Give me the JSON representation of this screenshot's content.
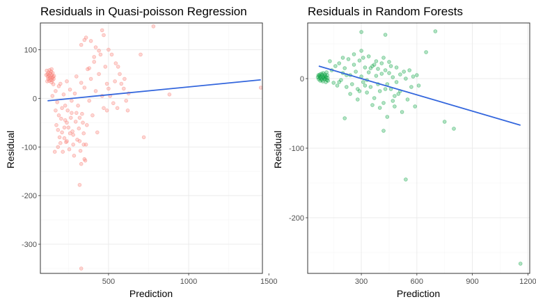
{
  "colors": {
    "background": "#ffffff",
    "grid_major": "#ebebeb",
    "grid_minor": "#f5f5f5",
    "border": "#333333",
    "trend": "#3366dd"
  },
  "chart_data": [
    {
      "type": "scatter",
      "title": "Residuals in Quasi-poisson Regression",
      "xlabel": "Prediction",
      "ylabel": "Residual",
      "xlim": [
        75,
        1460
      ],
      "ylim": [
        -360,
        155
      ],
      "xticks": [
        500,
        1000,
        1500
      ],
      "xtick_labels": [
        "500",
        "1000",
        "1500"
      ],
      "yticks": [
        100,
        0,
        -100,
        -200,
        -300
      ],
      "ytick_labels": [
        "100",
        "0",
        "-100",
        "-200",
        "-300"
      ],
      "grid": true,
      "point_color": "#f8766d",
      "trend_line": {
        "x": [
          120,
          1450
        ],
        "y": [
          -5,
          38
        ]
      },
      "points": [
        [
          115,
          57
        ],
        [
          120,
          50
        ],
        [
          122,
          44
        ],
        [
          124,
          40
        ],
        [
          126,
          53
        ],
        [
          128,
          47
        ],
        [
          130,
          36
        ],
        [
          132,
          58
        ],
        [
          134,
          42
        ],
        [
          136,
          51
        ],
        [
          138,
          45
        ],
        [
          140,
          38
        ],
        [
          142,
          55
        ],
        [
          144,
          33
        ],
        [
          146,
          48
        ],
        [
          148,
          42
        ],
        [
          150,
          37
        ],
        [
          152,
          52
        ],
        [
          154,
          44
        ],
        [
          156,
          29
        ],
        [
          158,
          40
        ],
        [
          118,
          35
        ],
        [
          112,
          48
        ],
        [
          160,
          46
        ],
        [
          145,
          60
        ],
        [
          150,
          5
        ],
        [
          170,
          15
        ],
        [
          180,
          -8
        ],
        [
          190,
          25
        ],
        [
          200,
          30
        ],
        [
          210,
          -20
        ],
        [
          220,
          8
        ],
        [
          230,
          -45
        ],
        [
          240,
          35
        ],
        [
          250,
          -60
        ],
        [
          260,
          18
        ],
        [
          270,
          -30
        ],
        [
          280,
          -75
        ],
        [
          290,
          10
        ],
        [
          300,
          45
        ],
        [
          310,
          -15
        ],
        [
          320,
          -88
        ],
        [
          330,
          32
        ],
        [
          340,
          -50
        ],
        [
          350,
          22
        ],
        [
          360,
          -95
        ],
        [
          370,
          60
        ],
        [
          380,
          -5
        ],
        [
          390,
          40
        ],
        [
          400,
          -35
        ],
        [
          410,
          75
        ],
        [
          420,
          15
        ],
        [
          430,
          -70
        ],
        [
          440,
          50
        ],
        [
          450,
          90
        ],
        [
          460,
          5
        ],
        [
          470,
          -20
        ],
        [
          480,
          65
        ],
        [
          490,
          30
        ],
        [
          500,
          20
        ],
        [
          175,
          -55
        ],
        [
          185,
          -100
        ],
        [
          195,
          -80
        ],
        [
          205,
          -42
        ],
        [
          215,
          -110
        ],
        [
          225,
          -60
        ],
        [
          235,
          -90
        ],
        [
          245,
          -25
        ],
        [
          255,
          -105
        ],
        [
          265,
          -40
        ],
        [
          275,
          -68
        ],
        [
          285,
          -118
        ],
        [
          295,
          -48
        ],
        [
          305,
          -85
        ],
        [
          315,
          -62
        ],
        [
          325,
          -108
        ],
        [
          335,
          -32
        ],
        [
          345,
          -72
        ],
        [
          355,
          -128
        ],
        [
          365,
          -55
        ],
        [
          185,
          -65
        ],
        [
          200,
          -92
        ],
        [
          165,
          -110
        ],
        [
          225,
          -82
        ],
        [
          240,
          -50
        ],
        [
          260,
          -72
        ],
        [
          280,
          -95
        ],
        [
          300,
          -30
        ],
        [
          320,
          -40
        ],
        [
          345,
          -95
        ],
        [
          330,
          -135
        ],
        [
          350,
          -125
        ],
        [
          320,
          -178
        ],
        [
          330,
          -350
        ],
        [
          240,
          -88
        ],
        [
          210,
          -70
        ],
        [
          170,
          -25
        ],
        [
          190,
          -35
        ],
        [
          230,
          -15
        ],
        [
          270,
          -5
        ],
        [
          330,
          110
        ],
        [
          350,
          120
        ],
        [
          360,
          125
        ],
        [
          390,
          118
        ],
        [
          420,
          105
        ],
        [
          440,
          98
        ],
        [
          460,
          140
        ],
        [
          470,
          130
        ],
        [
          410,
          85
        ],
        [
          380,
          62
        ],
        [
          500,
          100
        ],
        [
          520,
          90
        ],
        [
          545,
          72
        ],
        [
          560,
          65
        ],
        [
          570,
          50
        ],
        [
          580,
          30
        ],
        [
          595,
          20
        ],
        [
          610,
          -5
        ],
        [
          620,
          -25
        ],
        [
          625,
          10
        ],
        [
          600,
          40
        ],
        [
          540,
          35
        ],
        [
          530,
          -10
        ],
        [
          555,
          -20
        ],
        [
          510,
          5
        ],
        [
          490,
          -25
        ],
        [
          700,
          90
        ],
        [
          720,
          -80
        ],
        [
          780,
          148
        ],
        [
          880,
          8
        ],
        [
          1450,
          22
        ]
      ]
    },
    {
      "type": "scatter",
      "title": "Residuals in Random Forests",
      "xlabel": "Prediction",
      "ylabel": "Residual",
      "xlim": [
        10,
        1210
      ],
      "ylim": [
        -280,
        80
      ],
      "xticks": [
        300,
        600,
        900,
        1200
      ],
      "xtick_labels": [
        "300",
        "600",
        "900",
        "1200"
      ],
      "yticks": [
        0,
        -100,
        -200
      ],
      "ytick_labels": [
        "0",
        "-100",
        "-200"
      ],
      "grid": true,
      "point_color": "#00a03a",
      "trend_line": {
        "x": [
          70,
          1160
        ],
        "y": [
          18,
          -67
        ]
      },
      "points": [
        [
          65,
          2
        ],
        [
          68,
          5
        ],
        [
          70,
          -1
        ],
        [
          72,
          4
        ],
        [
          74,
          1
        ],
        [
          76,
          6
        ],
        [
          78,
          -3
        ],
        [
          80,
          3
        ],
        [
          82,
          0
        ],
        [
          84,
          7
        ],
        [
          86,
          -2
        ],
        [
          88,
          5
        ],
        [
          90,
          2
        ],
        [
          92,
          -4
        ],
        [
          94,
          8
        ],
        [
          96,
          1
        ],
        [
          98,
          3
        ],
        [
          100,
          -1
        ],
        [
          102,
          6
        ],
        [
          104,
          0
        ],
        [
          106,
          4
        ],
        [
          108,
          -5
        ],
        [
          110,
          2
        ],
        [
          112,
          9
        ],
        [
          114,
          -2
        ],
        [
          116,
          5
        ],
        [
          118,
          1
        ],
        [
          120,
          -3
        ],
        [
          130,
          25
        ],
        [
          140,
          12
        ],
        [
          150,
          -6
        ],
        [
          160,
          18
        ],
        [
          170,
          -10
        ],
        [
          180,
          22
        ],
        [
          190,
          -2
        ],
        [
          200,
          8
        ],
        [
          210,
          15
        ],
        [
          220,
          -12
        ],
        [
          230,
          28
        ],
        [
          240,
          5
        ],
        [
          250,
          -8
        ],
        [
          260,
          20
        ],
        [
          270,
          10
        ],
        [
          280,
          -15
        ],
        [
          290,
          26
        ],
        [
          300,
          3
        ],
        [
          310,
          -5
        ],
        [
          320,
          16
        ],
        [
          330,
          -20
        ],
        [
          340,
          9
        ],
        [
          350,
          -12
        ],
        [
          360,
          18
        ],
        [
          370,
          -28
        ],
        [
          380,
          4
        ],
        [
          390,
          14
        ],
        [
          400,
          -18
        ],
        [
          410,
          7
        ],
        [
          420,
          -35
        ],
        [
          430,
          12
        ],
        [
          440,
          -8
        ],
        [
          450,
          24
        ],
        [
          460,
          -15
        ],
        [
          470,
          2
        ],
        [
          480,
          -40
        ],
        [
          490,
          16
        ],
        [
          500,
          -22
        ],
        [
          510,
          6
        ],
        [
          520,
          -48
        ],
        [
          530,
          10
        ],
        [
          540,
          0
        ],
        [
          550,
          -30
        ],
        [
          560,
          12
        ],
        [
          570,
          -12
        ],
        [
          580,
          3
        ],
        [
          590,
          -40
        ],
        [
          600,
          5
        ],
        [
          180,
          -5
        ],
        [
          200,
          30
        ],
        [
          220,
          5
        ],
        [
          240,
          -22
        ],
        [
          260,
          35
        ],
        [
          280,
          -30
        ],
        [
          300,
          40
        ],
        [
          320,
          -10
        ],
        [
          340,
          32
        ],
        [
          360,
          -38
        ],
        [
          380,
          25
        ],
        [
          400,
          -42
        ],
        [
          420,
          30
        ],
        [
          440,
          -55
        ],
        [
          460,
          18
        ],
        [
          480,
          -25
        ],
        [
          350,
          15
        ],
        [
          290,
          -18
        ],
        [
          310,
          30
        ],
        [
          330,
          -2
        ],
        [
          370,
          20
        ],
        [
          390,
          -8
        ],
        [
          410,
          22
        ],
        [
          430,
          -15
        ],
        [
          450,
          8
        ],
        [
          470,
          -32
        ],
        [
          490,
          -5
        ],
        [
          510,
          -18
        ],
        [
          300,
          67
        ],
        [
          430,
          63
        ],
        [
          700,
          68
        ],
        [
          650,
          38
        ],
        [
          610,
          -10
        ],
        [
          210,
          -57
        ],
        [
          420,
          -75
        ],
        [
          540,
          -145
        ],
        [
          750,
          -62
        ],
        [
          800,
          -72
        ],
        [
          1160,
          -266
        ]
      ]
    }
  ]
}
